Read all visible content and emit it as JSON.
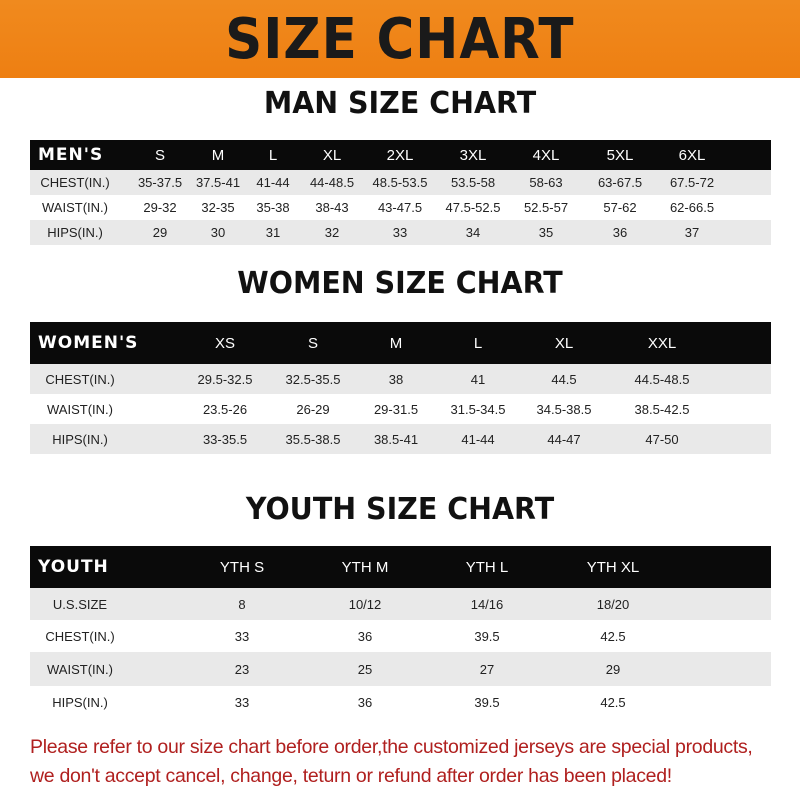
{
  "banner_title": "SIZE CHART",
  "men": {
    "title": "MAN SIZE CHART",
    "header": [
      "MEN'S",
      "S",
      "M",
      "L",
      "XL",
      "2XL",
      "3XL",
      "4XL",
      "5XL",
      "6XL"
    ],
    "rows": [
      [
        "CHEST(IN.)",
        "35-37.5",
        "37.5-41",
        "41-44",
        "44-48.5",
        "48.5-53.5",
        "53.5-58",
        "58-63",
        "63-67.5",
        "67.5-72"
      ],
      [
        "WAIST(IN.)",
        "29-32",
        "32-35",
        "35-38",
        "38-43",
        "43-47.5",
        "47.5-52.5",
        "52.5-57",
        "57-62",
        "62-66.5"
      ],
      [
        "HIPS(IN.)",
        "29",
        "30",
        "31",
        "32",
        "33",
        "34",
        "35",
        "36",
        "37"
      ]
    ]
  },
  "women": {
    "title": "WOMEN SIZE CHART",
    "header": [
      "WOMEN'S",
      "XS",
      "S",
      "M",
      "L",
      "XL",
      "XXL"
    ],
    "rows": [
      [
        "CHEST(IN.)",
        "29.5-32.5",
        "32.5-35.5",
        "38",
        "41",
        "44.5",
        "44.5-48.5"
      ],
      [
        "WAIST(IN.)",
        "23.5-26",
        "26-29",
        "29-31.5",
        "31.5-34.5",
        "34.5-38.5",
        "38.5-42.5"
      ],
      [
        "HIPS(IN.)",
        "33-35.5",
        "35.5-38.5",
        "38.5-41",
        "41-44",
        "44-47",
        "47-50"
      ]
    ]
  },
  "youth": {
    "title": "YOUTH SIZE CHART",
    "header": [
      "YOUTH",
      "YTH S",
      "YTH M",
      "YTH L",
      "YTH XL"
    ],
    "rows": [
      [
        "U.S.SIZE",
        "8",
        "10/12",
        "14/16",
        "18/20"
      ],
      [
        "CHEST(IN.)",
        "33",
        "36",
        "39.5",
        "42.5"
      ],
      [
        "WAIST(IN.)",
        "23",
        "25",
        "27",
        "29"
      ],
      [
        "HIPS(IN.)",
        "33",
        "36",
        "39.5",
        "42.5"
      ]
    ]
  },
  "notice": {
    "line1": "Please refer to our size chart before order,the customized jerseys are special products,",
    "line2": "we don't accept cancel, change, teturn or refund after order has been placed!"
  },
  "colors": {
    "banner": "#ef8418",
    "header_row": "#0a0a0a",
    "shaded_row": "#e9e9e9",
    "notice": "#b0201f"
  }
}
